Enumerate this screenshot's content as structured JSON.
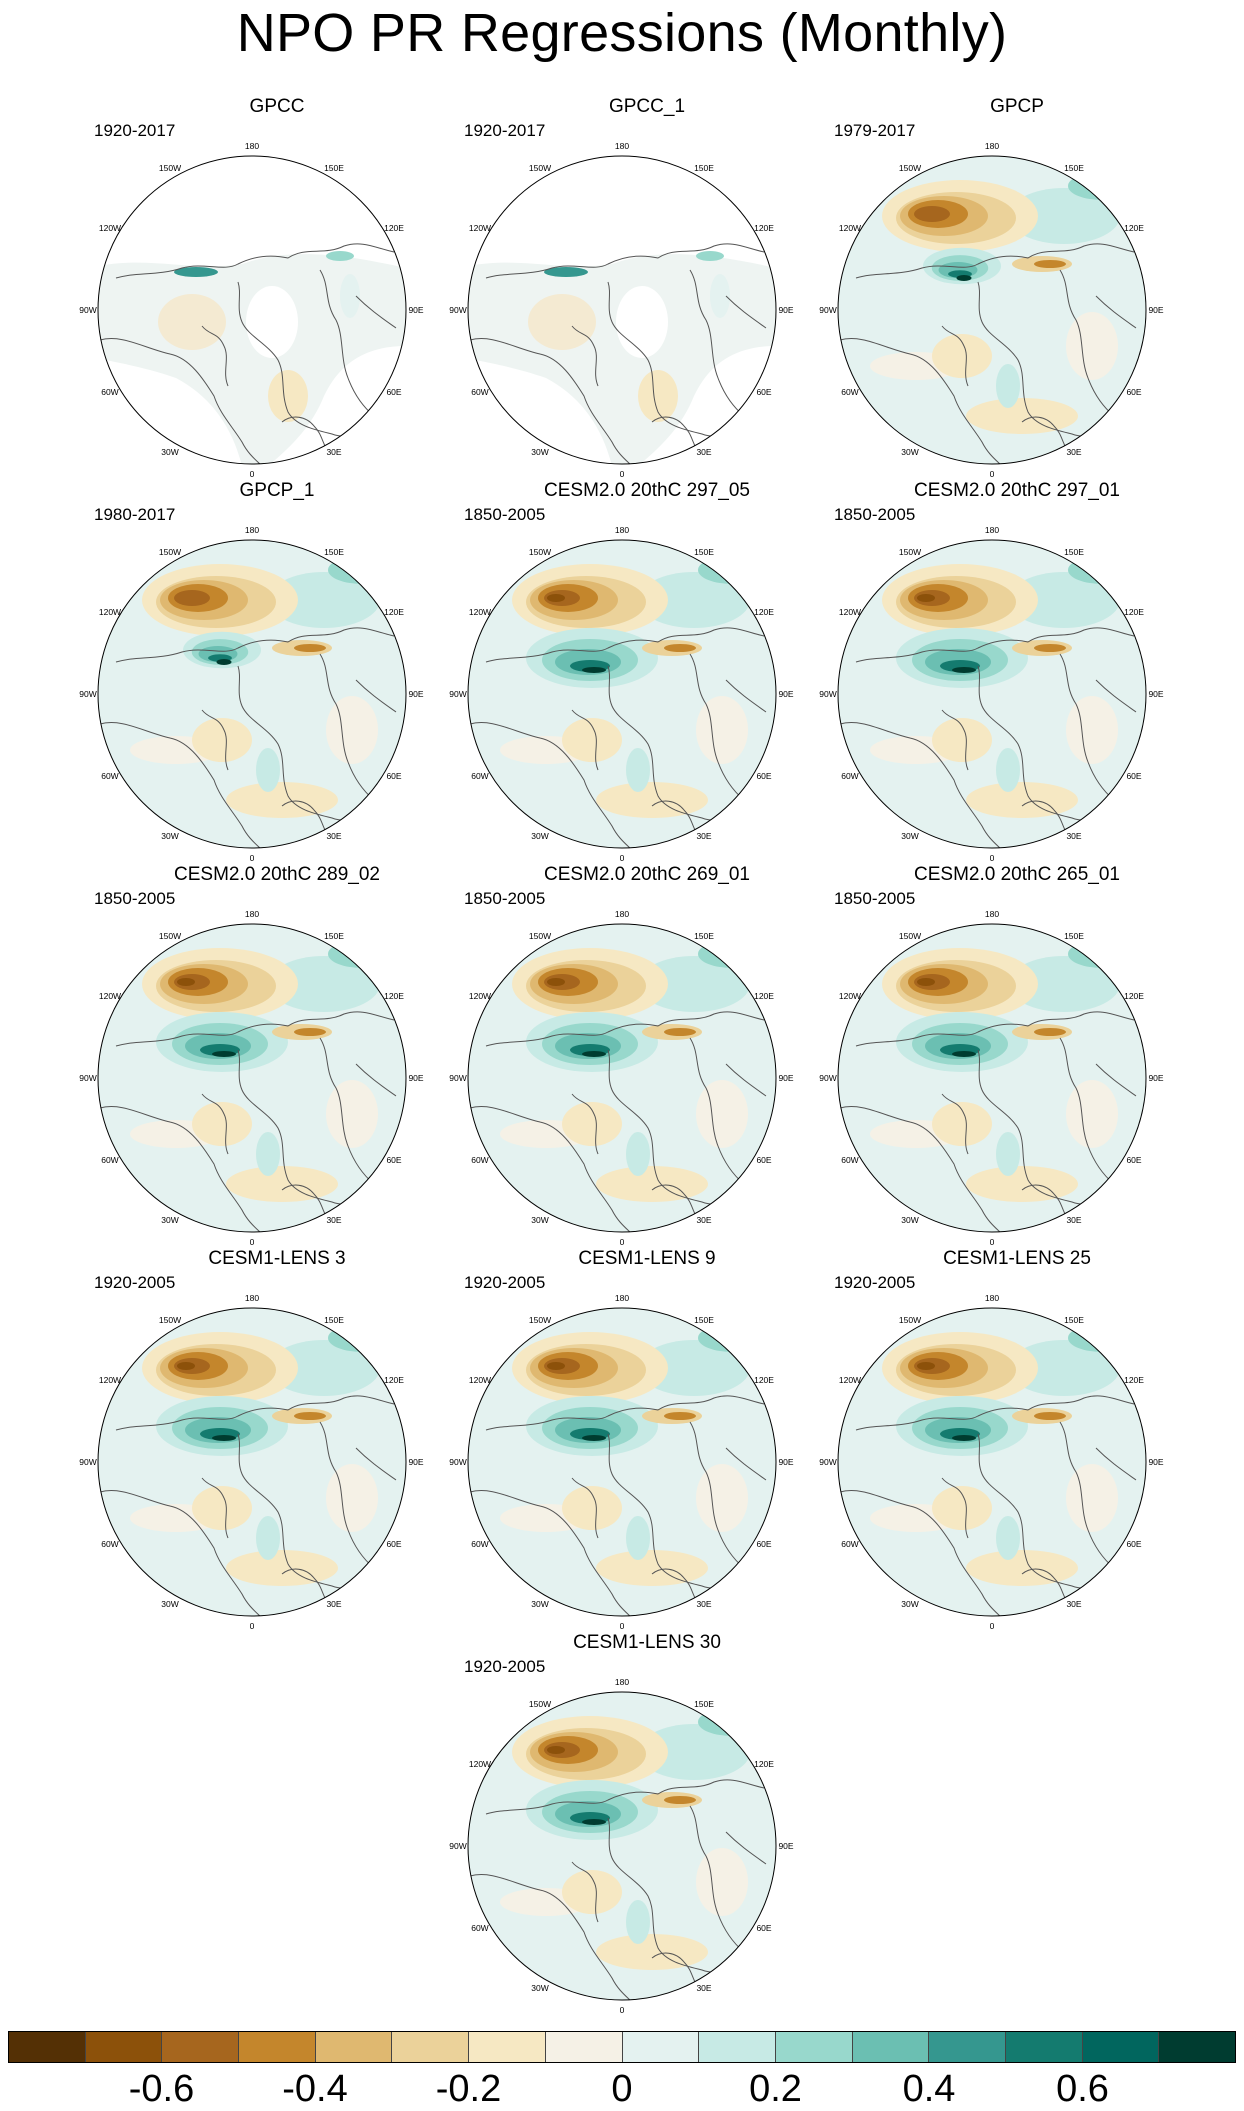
{
  "title": "NPO PR Regressions (Monthly)",
  "panels": [
    {
      "title": "GPCC",
      "period": "1920-2017",
      "pattern": "gpcc"
    },
    {
      "title": "GPCC_1",
      "period": "1920-2017",
      "pattern": "gpcc"
    },
    {
      "title": "GPCP",
      "period": "1979-2017",
      "pattern": "gpcp"
    },
    {
      "title": "GPCP_1",
      "period": "1980-2017",
      "pattern": "gpcp"
    },
    {
      "title": "CESM2.0 20thC 297_05",
      "period": "1850-2005",
      "pattern": "model"
    },
    {
      "title": "CESM2.0 20thC 297_01",
      "period": "1850-2005",
      "pattern": "model"
    },
    {
      "title": "CESM2.0 20thC 289_02",
      "period": "1850-2005",
      "pattern": "model"
    },
    {
      "title": "CESM2.0 20thC 269_01",
      "period": "1850-2005",
      "pattern": "model"
    },
    {
      "title": "CESM2.0 20thC 265_01",
      "period": "1850-2005",
      "pattern": "model"
    },
    {
      "title": "CESM1-LENS 3",
      "period": "1920-2005",
      "pattern": "model"
    },
    {
      "title": "CESM1-LENS 9",
      "period": "1920-2005",
      "pattern": "model"
    },
    {
      "title": "CESM1-LENS 25",
      "period": "1920-2005",
      "pattern": "model"
    },
    {
      "title": "CESM1-LENS 30",
      "period": "1920-2005",
      "pattern": "model"
    }
  ],
  "longitude_labels": {
    "top": "180",
    "bottom": "0",
    "left": "90W",
    "right": "90E",
    "upper_left_1": "150W",
    "upper_left_2": "120W",
    "upper_right_1": "150E",
    "upper_right_2": "120E",
    "lower_left_1": "60W",
    "lower_left_2": "30W",
    "lower_right_1": "60E",
    "lower_right_2": "30E"
  },
  "colorbar": {
    "colors": [
      "#543005",
      "#8c510a",
      "#a6661e",
      "#c4862c",
      "#dfb870",
      "#ebd29a",
      "#f6e8c3",
      "#f5f1e6",
      "#e4f2f0",
      "#c7eae5",
      "#98d8cc",
      "#6bbfb2",
      "#35978f",
      "#147b6f",
      "#01665e",
      "#003c30"
    ],
    "ticks": [
      {
        "label": "-0.6",
        "value": -0.6
      },
      {
        "label": "-0.4",
        "value": -0.4
      },
      {
        "label": "-0.2",
        "value": -0.2
      },
      {
        "label": "0",
        "value": 0
      },
      {
        "label": "0.2",
        "value": 0.2
      },
      {
        "label": "0.4",
        "value": 0.4
      },
      {
        "label": "0.6",
        "value": 0.6
      }
    ],
    "min": -0.8,
    "max": 0.8
  }
}
